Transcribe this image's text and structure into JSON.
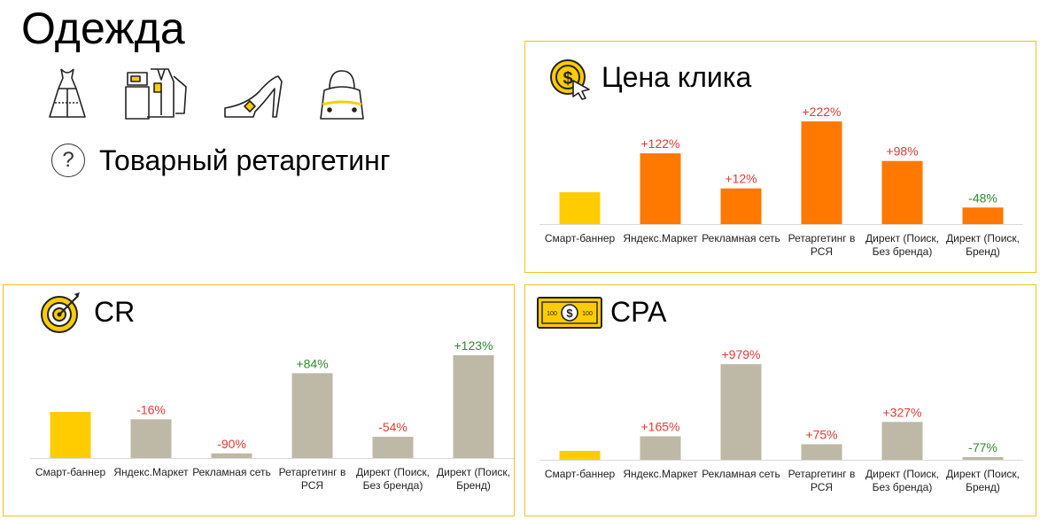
{
  "page": {
    "title": "Одежда",
    "icons": [
      "dress-icon",
      "clothes-pile-icon",
      "high-heel-shoe-icon",
      "handbag-icon"
    ],
    "help_icon": "question-circle-icon",
    "subtitle": "Товарный ретаргетинг"
  },
  "colors": {
    "panel_border": "#f0c419",
    "base_bar": "#ffcc00",
    "orange_bar": "#ff7800",
    "gray_bar": "#bdb9a6",
    "positive_label": "#e53935",
    "negative_label": "#2e8b2e",
    "good_label": "#2e8b2e",
    "bad_label": "#e53935"
  },
  "chart_data": [
    {
      "type": "bar",
      "title": "Цена клика",
      "icon": "coin-cursor-icon",
      "categories": [
        "Смарт-баннер",
        "Яндекс.Маркет",
        "Рекламная сеть",
        "Ретаргетинг в РСЯ",
        "Директ (Поиск, Без бренда)",
        "Директ (Поиск, Бренд)"
      ],
      "values": [
        0,
        122,
        12,
        222,
        98,
        -48
      ],
      "labels": [
        "",
        "+122%",
        "+12%",
        "+222%",
        "+98%",
        "-48%"
      ],
      "label_tone": [
        "none",
        "bad",
        "bad",
        "bad",
        "bad",
        "good"
      ],
      "bar_colors": [
        "#ffcc00",
        "#ff7800",
        "#ff7800",
        "#ff7800",
        "#ff7800",
        "#ff7800"
      ]
    },
    {
      "type": "bar",
      "title": "CR",
      "icon": "target-icon",
      "categories": [
        "Смарт-баннер",
        "Яндекс.Маркет",
        "Рекламная сеть",
        "Ретаргетинг в РСЯ",
        "Директ (Поиск, Без бренда)",
        "Директ (Поиск, Бренд)"
      ],
      "values": [
        0,
        -16,
        -90,
        84,
        -54,
        123
      ],
      "labels": [
        "",
        "-16%",
        "-90%",
        "+84%",
        "-54%",
        "+123%"
      ],
      "label_tone": [
        "none",
        "bad",
        "bad",
        "good",
        "bad",
        "good"
      ],
      "bar_colors": [
        "#ffcc00",
        "#bdb9a6",
        "#bdb9a6",
        "#bdb9a6",
        "#bdb9a6",
        "#bdb9a6"
      ]
    },
    {
      "type": "bar",
      "title": "CPA",
      "icon": "banknote-icon",
      "categories": [
        "Смарт-баннер",
        "Яндекс.Маркет",
        "Рекламная сеть",
        "Ретаргетинг в РСЯ",
        "Директ (Поиск, Без бренда)",
        "Директ (Поиск, Бренд)"
      ],
      "values": [
        0,
        165,
        979,
        75,
        327,
        -77
      ],
      "labels": [
        "",
        "+165%",
        "+979%",
        "+75%",
        "+327%",
        "-77%"
      ],
      "label_tone": [
        "none",
        "bad",
        "bad",
        "bad",
        "bad",
        "good"
      ],
      "bar_colors": [
        "#ffcc00",
        "#bdb9a6",
        "#bdb9a6",
        "#bdb9a6",
        "#bdb9a6",
        "#bdb9a6"
      ]
    }
  ]
}
